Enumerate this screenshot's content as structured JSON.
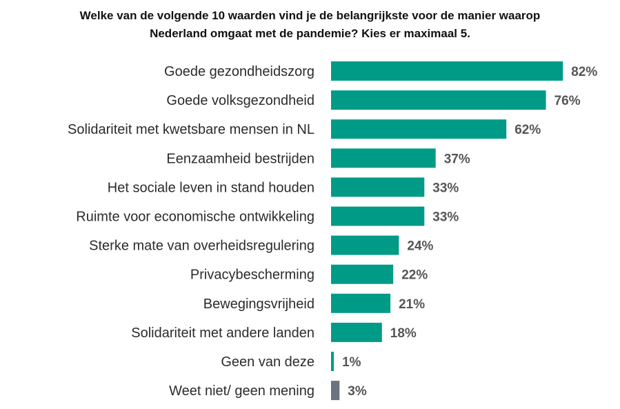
{
  "chart_data": {
    "type": "bar",
    "orientation": "horizontal",
    "title_lines": [
      "Welke van de volgende 10 waarden vind je de belangrijkste voor de manier waarop",
      "Nederland omgaat met de pandemie? Kies er maximaal 5."
    ],
    "categories": [
      "Goede gezondheidszorg",
      "Goede volksgezondheid",
      "Solidariteit met kwetsbare mensen in NL",
      "Eenzaamheid bestrijden",
      "Het sociale leven in stand houden",
      "Ruimte voor economische ontwikkeling",
      "Sterke mate van overheidsregulering",
      "Privacybescherming",
      "Bewegingsvrijheid",
      "Solidariteit met andere landen",
      "Geen van deze",
      "Weet niet/ geen mening"
    ],
    "values": [
      82,
      76,
      62,
      37,
      33,
      33,
      24,
      22,
      21,
      18,
      1,
      3
    ],
    "value_labels": [
      "82%",
      "76%",
      "62%",
      "37%",
      "33%",
      "33%",
      "24%",
      "22%",
      "21%",
      "18%",
      "1%",
      "3%"
    ],
    "bar_colors": [
      "#009B87",
      "#009B87",
      "#009B87",
      "#009B87",
      "#009B87",
      "#009B87",
      "#009B87",
      "#009B87",
      "#009B87",
      "#009B87",
      "#009B87",
      "#6B7280"
    ],
    "xlim": [
      0,
      100
    ],
    "grid": false,
    "legend": "none"
  }
}
